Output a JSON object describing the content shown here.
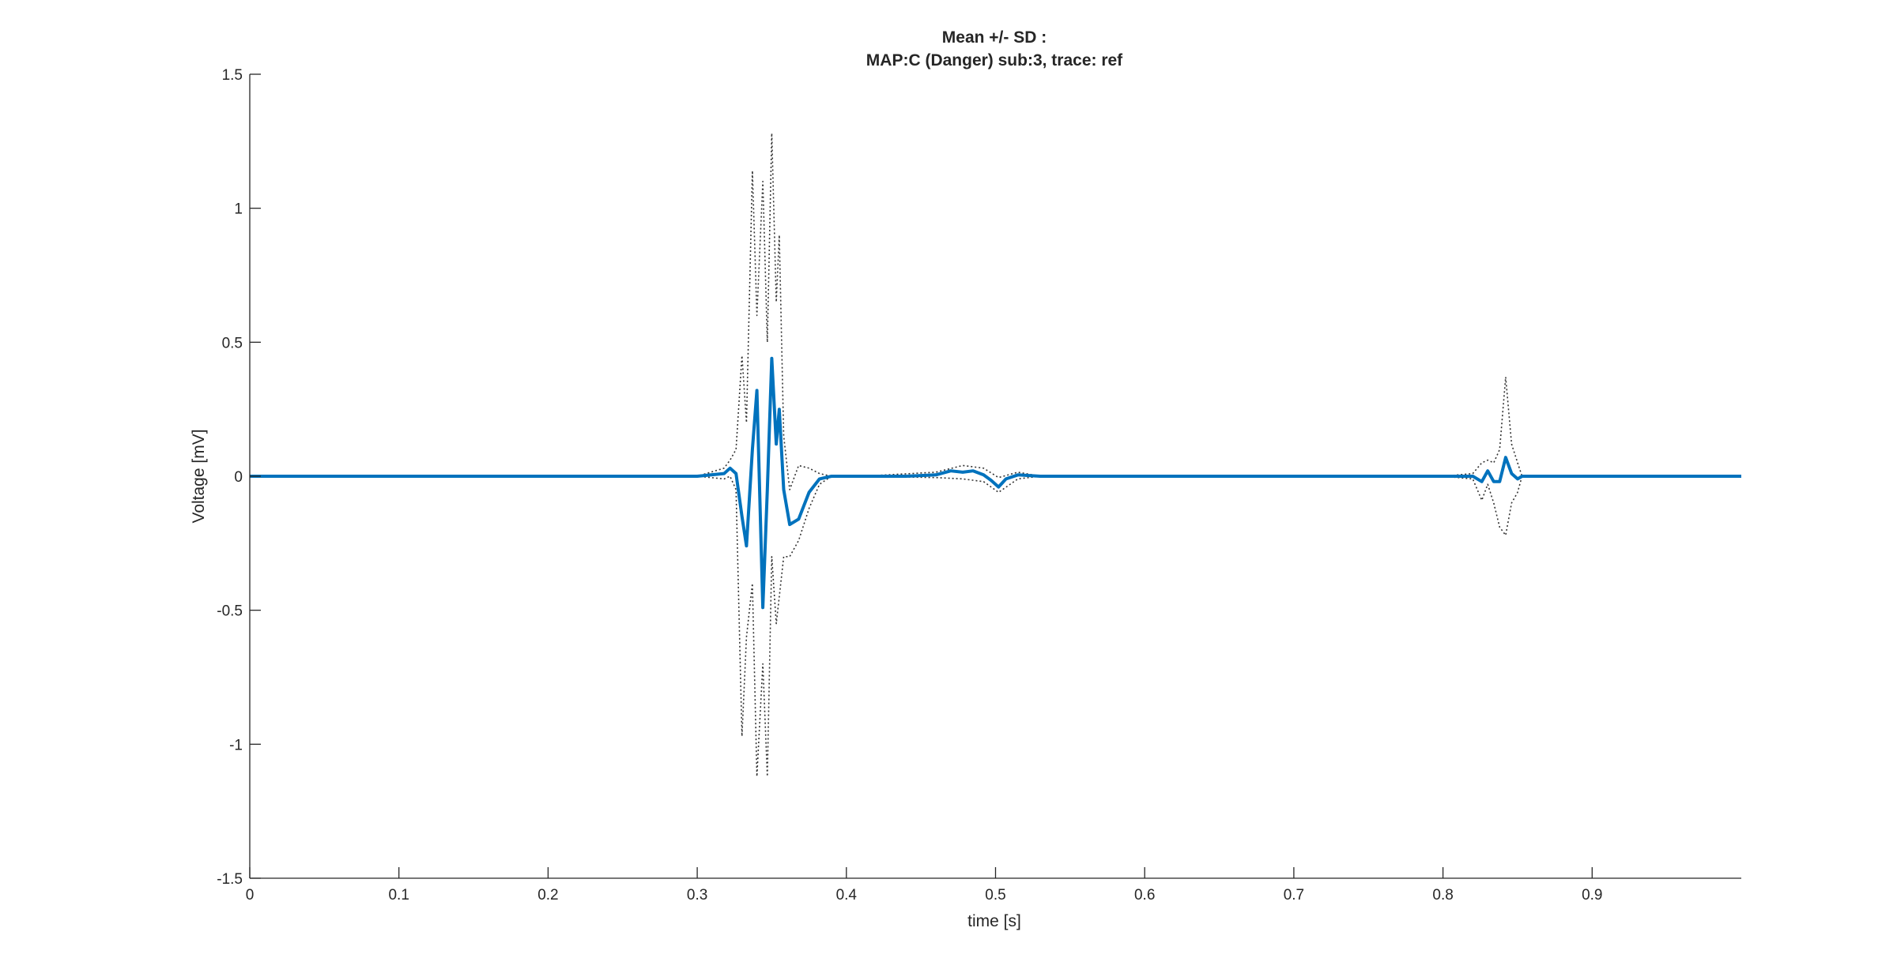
{
  "chart_data": {
    "type": "line",
    "title": [
      "Mean +/- SD :",
      "MAP:C (Danger) sub:3, trace: ref"
    ],
    "xlabel": "time [s]",
    "ylabel": "Voltage [mV]",
    "xlim": [
      0,
      1.0
    ],
    "ylim": [
      -1.5,
      1.5
    ],
    "xticks": [
      0,
      0.1,
      0.2,
      0.3,
      0.4,
      0.5,
      0.6,
      0.7,
      0.8,
      0.9
    ],
    "xtick_labels": [
      "0",
      "0.1",
      "0.2",
      "0.3",
      "0.4",
      "0.5",
      "0.6",
      "0.7",
      "0.8",
      "0.9"
    ],
    "yticks": [
      -1.5,
      -1,
      -0.5,
      0,
      0.5,
      1,
      1.5
    ],
    "ytick_labels": [
      "-1.5",
      "-1",
      "-0.5",
      "0",
      "0.5",
      "1",
      "1.5"
    ],
    "grid": false,
    "colors": {
      "mean": "#0072BD",
      "sd": "#333333",
      "axis": "#262626"
    },
    "series": [
      {
        "role": "mean",
        "style": "solid",
        "x": [
          0,
          0.1,
          0.2,
          0.3,
          0.318,
          0.322,
          0.326,
          0.33,
          0.333,
          0.337,
          0.34,
          0.344,
          0.347,
          0.35,
          0.353,
          0.355,
          0.358,
          0.362,
          0.368,
          0.375,
          0.382,
          0.39,
          0.41,
          0.44,
          0.46,
          0.47,
          0.478,
          0.485,
          0.492,
          0.497,
          0.502,
          0.507,
          0.515,
          0.53,
          0.6,
          0.7,
          0.8,
          0.82,
          0.826,
          0.83,
          0.834,
          0.838,
          0.842,
          0.846,
          0.85,
          0.853,
          1.0
        ],
        "y": [
          0,
          0,
          0,
          0,
          0.01,
          0.03,
          0.01,
          -0.15,
          -0.26,
          0.1,
          0.32,
          -0.49,
          -0.05,
          0.44,
          0.12,
          0.25,
          -0.05,
          -0.18,
          -0.16,
          -0.06,
          -0.01,
          0,
          0,
          0,
          0.005,
          0.02,
          0.015,
          0.02,
          0.005,
          -0.015,
          -0.04,
          -0.01,
          0.005,
          0,
          0,
          0,
          0,
          0,
          -0.02,
          0.02,
          -0.02,
          -0.02,
          0.07,
          0.01,
          -0.01,
          0,
          0
        ]
      },
      {
        "role": "mean+SD",
        "style": "dotted",
        "x": [
          0,
          0.3,
          0.318,
          0.322,
          0.326,
          0.33,
          0.333,
          0.337,
          0.34,
          0.344,
          0.347,
          0.35,
          0.353,
          0.355,
          0.358,
          0.362,
          0.368,
          0.375,
          0.382,
          0.39,
          0.41,
          0.46,
          0.478,
          0.492,
          0.502,
          0.515,
          0.53,
          0.8,
          0.82,
          0.826,
          0.83,
          0.834,
          0.838,
          0.842,
          0.846,
          0.85,
          0.853,
          1.0
        ],
        "y": [
          0,
          0,
          0.03,
          0.06,
          0.1,
          0.45,
          0.2,
          1.14,
          0.6,
          1.1,
          0.5,
          1.28,
          0.65,
          0.9,
          0.15,
          -0.05,
          0.04,
          0.03,
          0.01,
          0,
          0,
          0.015,
          0.04,
          0.03,
          -0.005,
          0.015,
          0,
          0,
          0.01,
          0.05,
          0.06,
          0.05,
          0.1,
          0.37,
          0.12,
          0.05,
          0,
          0
        ]
      },
      {
        "role": "mean-SD",
        "style": "dotted",
        "x": [
          0,
          0.3,
          0.318,
          0.322,
          0.326,
          0.33,
          0.333,
          0.337,
          0.34,
          0.344,
          0.347,
          0.35,
          0.353,
          0.355,
          0.358,
          0.362,
          0.368,
          0.375,
          0.382,
          0.39,
          0.41,
          0.46,
          0.478,
          0.492,
          0.502,
          0.515,
          0.53,
          0.8,
          0.82,
          0.826,
          0.83,
          0.834,
          0.838,
          0.842,
          0.846,
          0.85,
          0.853,
          1.0
        ],
        "y": [
          0,
          0,
          -0.01,
          0,
          -0.05,
          -0.97,
          -0.6,
          -0.4,
          -1.12,
          -0.7,
          -1.12,
          -0.3,
          -0.55,
          -0.45,
          -0.3,
          -0.3,
          -0.24,
          -0.12,
          -0.03,
          0,
          0,
          -0.005,
          -0.01,
          -0.02,
          -0.06,
          -0.01,
          0,
          0,
          -0.01,
          -0.09,
          -0.03,
          -0.1,
          -0.19,
          -0.22,
          -0.1,
          -0.06,
          0,
          0
        ]
      }
    ]
  }
}
